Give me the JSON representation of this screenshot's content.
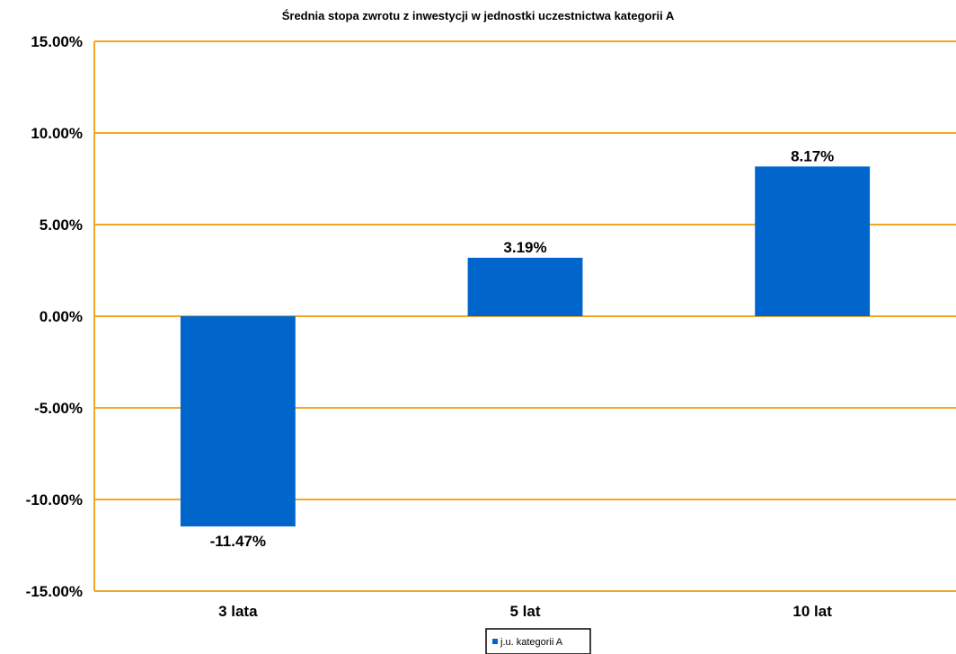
{
  "chart_data": {
    "type": "bar",
    "title": "Średnia stopa zwrotu z inwestycji w jednostki uczestnictwa kategorii A",
    "categories": [
      "3 lata",
      "5 lat",
      "10 lat"
    ],
    "series": [
      {
        "name": "j.u. kategorii A",
        "values": [
          -11.47,
          3.19,
          8.17
        ],
        "labels": [
          "-11.47%",
          "3.19%",
          "8.17%"
        ]
      }
    ],
    "ylim": [
      -15,
      15
    ],
    "yticks": [
      15,
      10,
      5,
      0,
      -5,
      -10,
      -15
    ],
    "ytick_labels": [
      "15.00%",
      "10.00%",
      "5.00%",
      "0.00%",
      "-5.00%",
      "-10.00%",
      "-15.00%"
    ],
    "xlabel": "",
    "ylabel": "",
    "grid": true,
    "legend": "bottom-center",
    "colors": {
      "bar": "#0066CC",
      "grid": "#F5A623",
      "axis": "#F5A623",
      "legend_border": "#000000"
    }
  }
}
